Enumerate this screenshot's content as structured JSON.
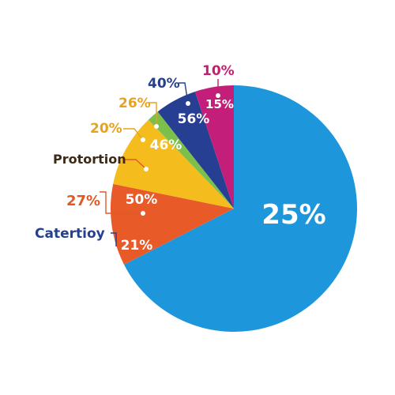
{
  "chart_data": {
    "type": "pie",
    "colors": {
      "blue": "#1E96DC",
      "orange": "#E85A28",
      "yellow": "#F5BC1E",
      "green": "#7CC04B",
      "navy": "#263F92",
      "magenta": "#C41E7B",
      "callout_orange": "#E05A28",
      "callout_yellow": "#E8A21E",
      "callout_navy": "#24408E",
      "callout_magenta": "#C41E6E",
      "callout_brown": "#3B2A17"
    },
    "slices": [
      {
        "value": 67.5,
        "color": "#1E96DC",
        "inner_label": "25%"
      },
      {
        "value": 10.7,
        "color": "#E85A28",
        "inner_label": "50%"
      },
      {
        "value": 9.6,
        "color": "#F5BC1E",
        "inner_label": "46%"
      },
      {
        "value": 1.6,
        "color": "#7CC04B",
        "inner_label": ""
      },
      {
        "value": 5.5,
        "color": "#263F92",
        "inner_label": "56%"
      },
      {
        "value": 5.1,
        "color": "#C41E7B",
        "inner_label": "15%"
      }
    ],
    "outer_labels": {
      "blue_slice_label": "21%",
      "category": "Catertioy",
      "orange_pct": "27%",
      "proportion": "Protortion",
      "yellow_pct_lower": "20%",
      "yellow_pct_upper": "26%",
      "navy_pct": "40%",
      "magenta_pct": "10%"
    }
  }
}
